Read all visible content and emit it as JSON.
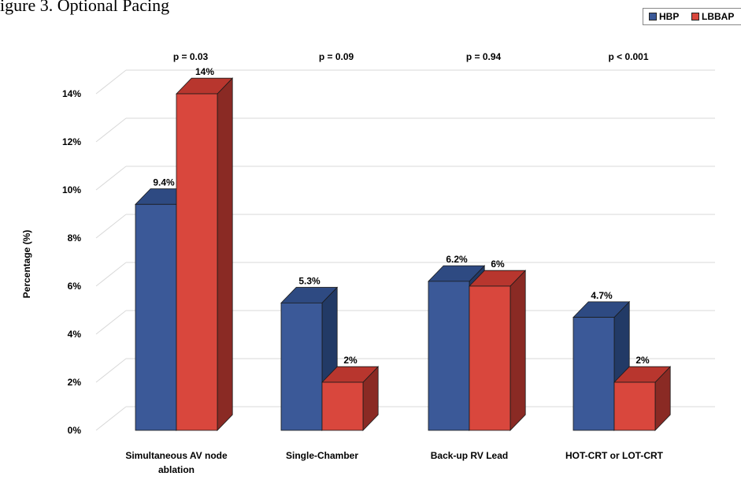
{
  "figure": {
    "title_fragment": "igure 3. Optional Pacing"
  },
  "colors": {
    "hbp_front": "#3b5998",
    "hbp_side": "#223a66",
    "hbp_top": "#2e4a82",
    "lbbap_front": "#d9473d",
    "lbbap_side": "#8a2a24",
    "lbbap_top": "#b8362e",
    "grid": "#d9d9d9"
  },
  "chart_data": {
    "type": "bar",
    "title": "",
    "xlabel": "",
    "ylabel": "Percentage (%)",
    "ylim": [
      0,
      14
    ],
    "y_ticks": [
      0,
      2,
      4,
      6,
      8,
      10,
      12,
      14
    ],
    "y_tick_labels": [
      "0%",
      "2%",
      "4%",
      "6%",
      "8%",
      "10%",
      "12%",
      "14%"
    ],
    "categories": [
      [
        "Simultaneous AV node",
        "ablation"
      ],
      [
        "Single-Chamber"
      ],
      [
        "Back-up RV Lead"
      ],
      [
        "HOT-CRT or LOT-CRT"
      ]
    ],
    "p_values": [
      "p = 0.03",
      "p = 0.09",
      "p = 0.94",
      "p < 0.001"
    ],
    "series": [
      {
        "name": "HBP",
        "values": [
          9.4,
          5.3,
          6.2,
          4.7
        ],
        "labels": [
          "9.4%",
          "5.3%",
          "6.2%",
          "4.7%"
        ]
      },
      {
        "name": "LBBAP",
        "values": [
          14,
          2,
          6,
          2
        ],
        "labels": [
          "14%",
          "2%",
          "6%",
          "2%"
        ]
      }
    ],
    "grid": true,
    "legend_position": "top-right"
  }
}
